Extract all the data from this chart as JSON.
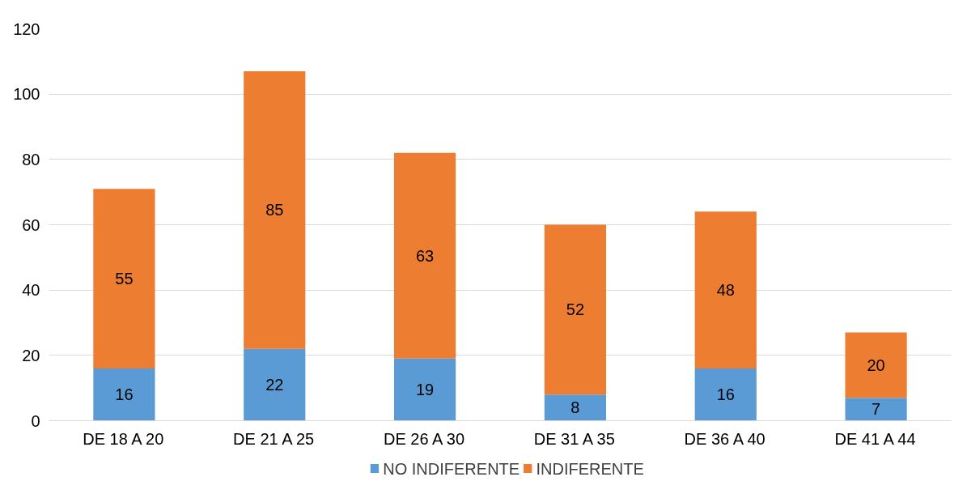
{
  "chart_data": {
    "type": "bar",
    "stacked": true,
    "categories": [
      "DE 18 A 20",
      "DE 21 A 25",
      "DE 26 A 30",
      "DE 31 A 35",
      "DE 36 A 40",
      "DE 41 A 44"
    ],
    "series": [
      {
        "name": "NO INDIFERENTE",
        "color": "#5b9bd5",
        "values": [
          16,
          22,
          19,
          8,
          16,
          7
        ]
      },
      {
        "name": "INDIFERENTE",
        "color": "#ed7d31",
        "values": [
          55,
          85,
          63,
          52,
          48,
          20
        ]
      }
    ],
    "ylim": [
      0,
      120
    ],
    "yticks": [
      0,
      20,
      40,
      60,
      80,
      100,
      120
    ],
    "grid": "y",
    "legend": "bottom",
    "data_labels": true
  }
}
